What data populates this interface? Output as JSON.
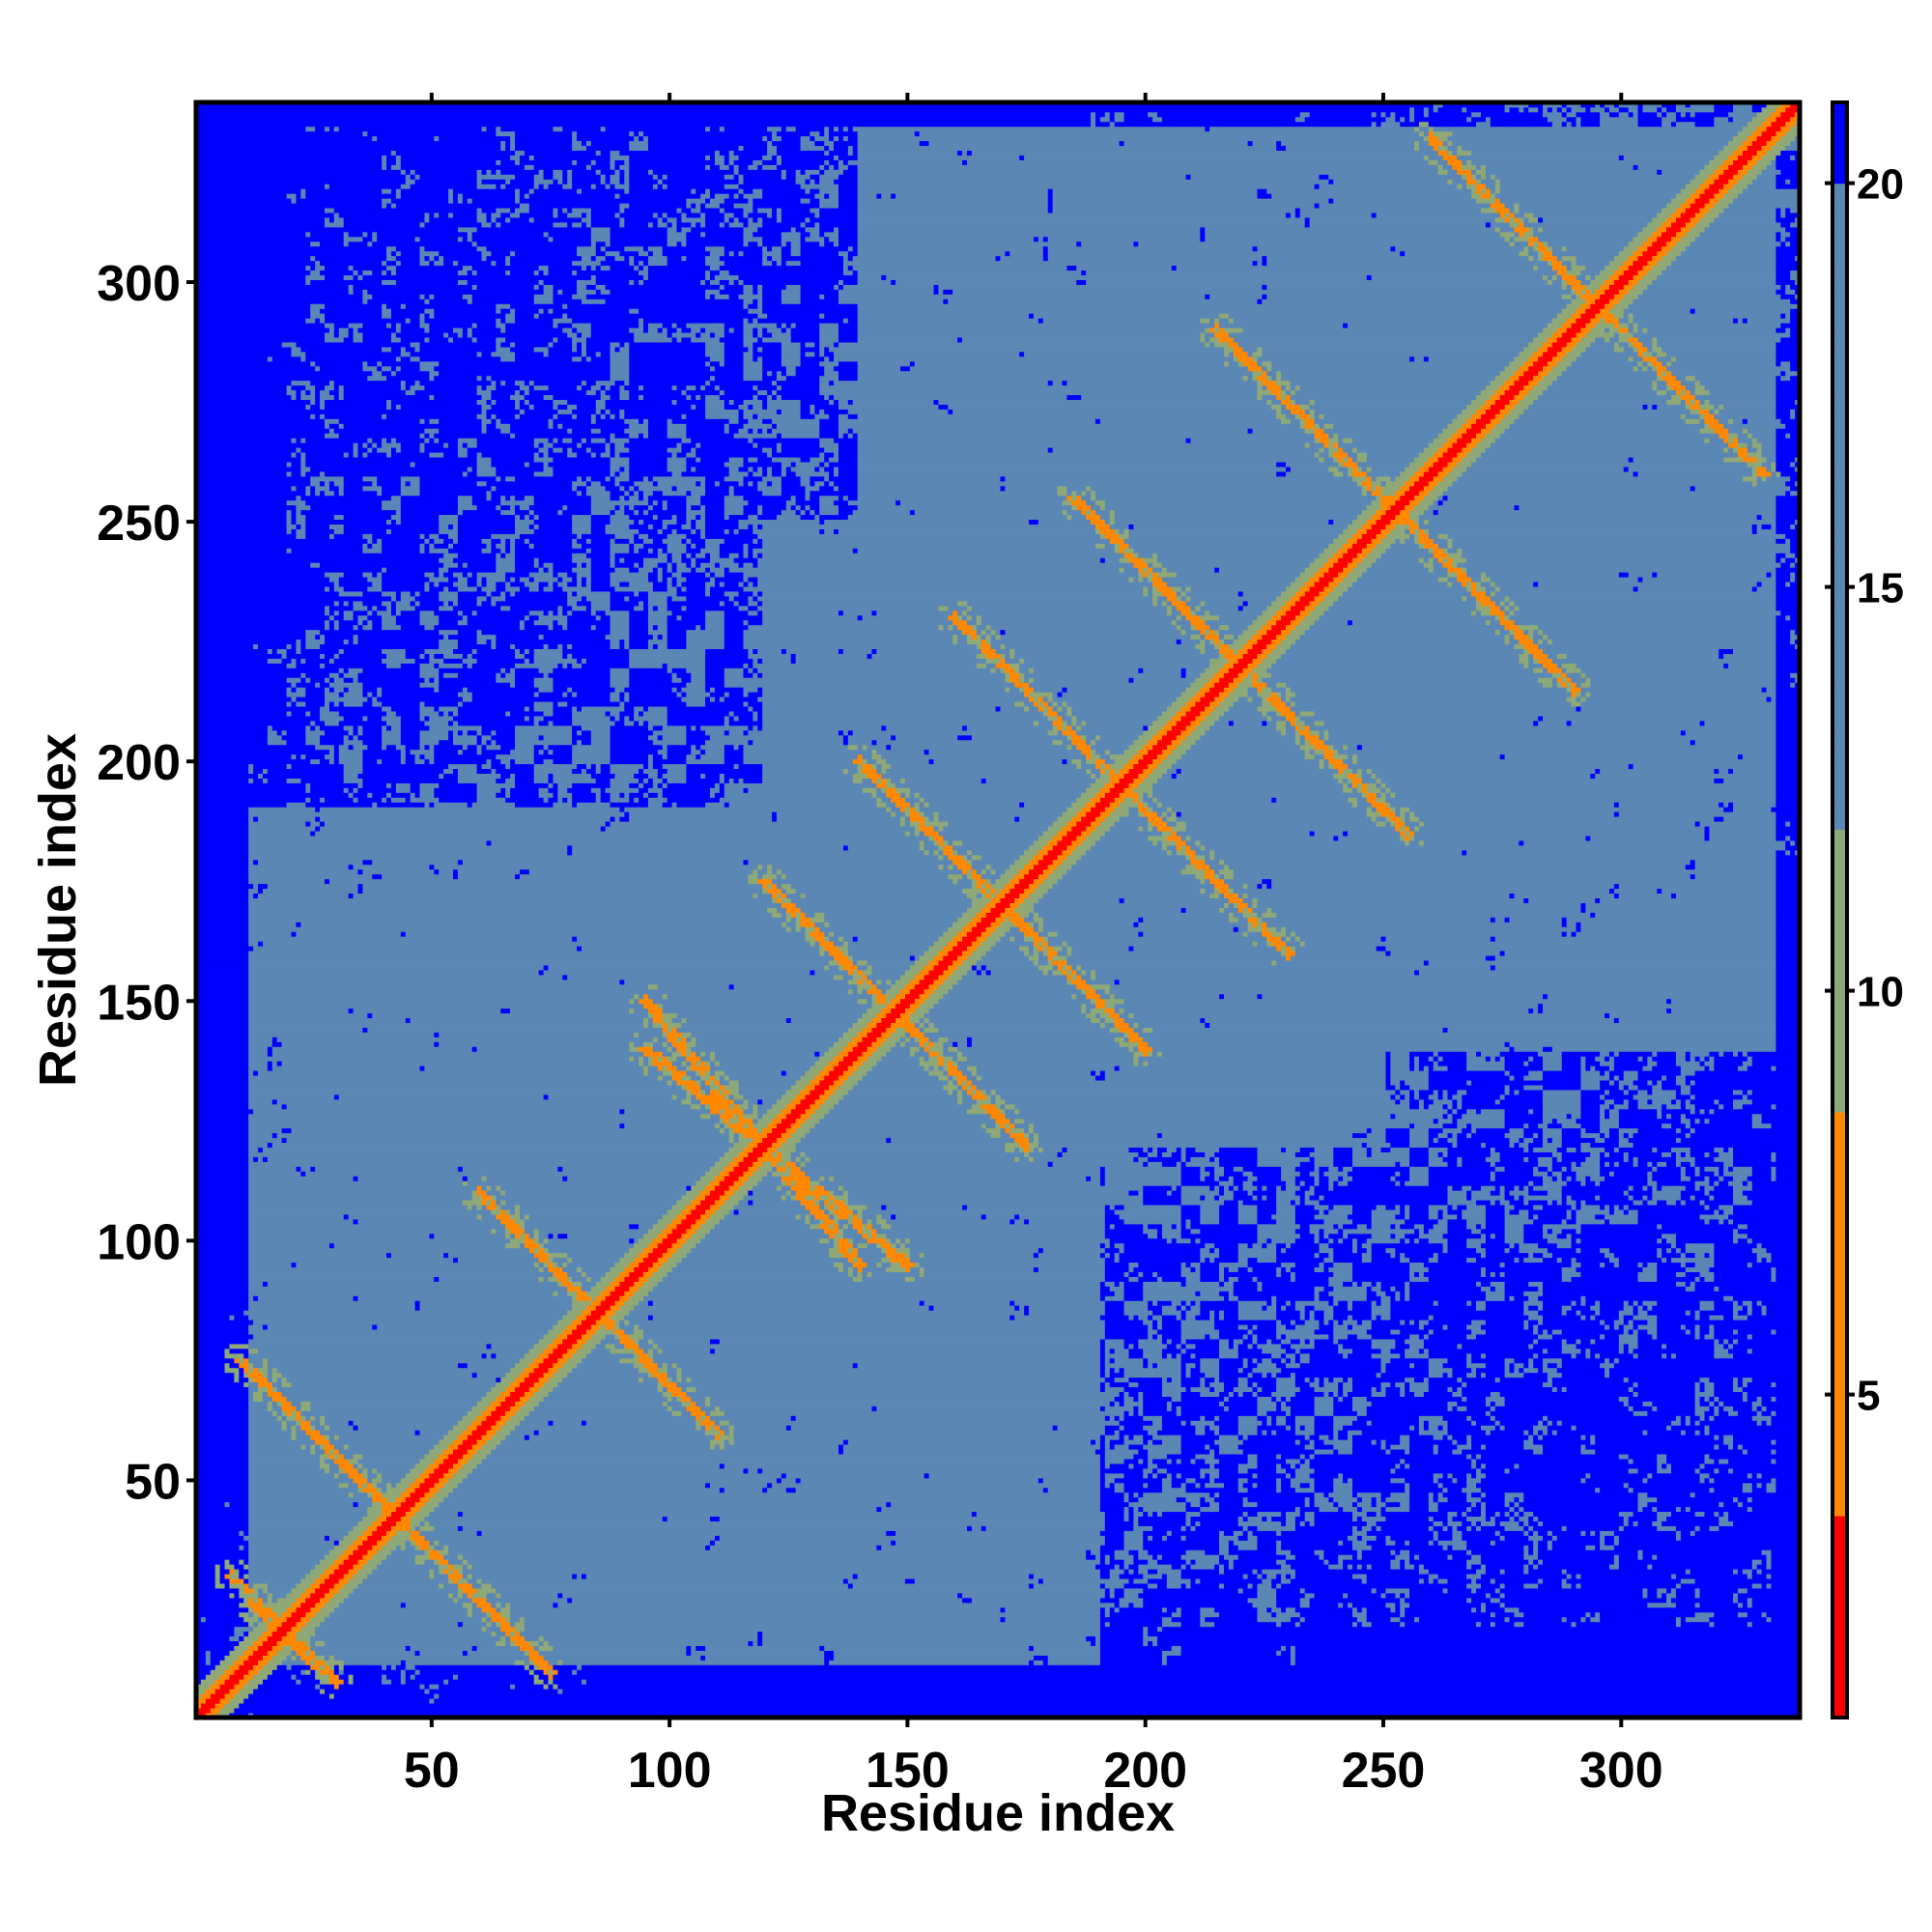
{
  "chart_data": {
    "type": "heatmap",
    "title": "",
    "xlabel": "Residue index",
    "ylabel": "Residue index",
    "xlim": [
      1,
      337
    ],
    "ylim": [
      1,
      337
    ],
    "x_ticks": [
      50,
      100,
      150,
      200,
      250,
      300
    ],
    "y_ticks": [
      50,
      100,
      150,
      200,
      250,
      300
    ],
    "x_tick_labels": [
      "50",
      "100",
      "150",
      "200",
      "250",
      "300"
    ],
    "y_tick_labels": [
      "50",
      "100",
      "150",
      "200",
      "250",
      "300"
    ],
    "colorbar": {
      "range": [
        1,
        21
      ],
      "ticks": [
        5,
        10,
        15,
        20
      ],
      "tick_labels": [
        "5",
        "10",
        "15",
        "20"
      ],
      "colors": [
        "#ff0000",
        "#ff8800",
        "#8fa878",
        "#5b87b5",
        "#0000ff"
      ]
    },
    "grid": false,
    "legend": "none",
    "description_of_values": "symmetric residue-residue distance map; main diagonal near 1-4 (red/orange), beta-strand bands below 8 (orange), background around 18-19 (steel blue), far contacts above 20 (blue)",
    "diagonal_value": 1,
    "background_value": 18.5,
    "far_value": 21,
    "band_value": 6,
    "bands": [
      {
        "from": [
          12,
          25
        ],
        "to": [
          30,
          8
        ]
      },
      {
        "from": [
          10,
          75
        ],
        "to": [
          55,
          30
        ]
      },
      {
        "from": [
          60,
          110
        ],
        "to": [
          110,
          60
        ]
      },
      {
        "from": [
          95,
          140
        ],
        "to": [
          150,
          95
        ]
      },
      {
        "from": [
          120,
          175
        ],
        "to": [
          175,
          120
        ]
      },
      {
        "from": [
          140,
          200
        ],
        "to": [
          200,
          140
        ]
      },
      {
        "from": [
          160,
          230
        ],
        "to": [
          230,
          160
        ]
      },
      {
        "from": [
          185,
          255
        ],
        "to": [
          255,
          185
        ]
      },
      {
        "from": [
          215,
          290
        ],
        "to": [
          290,
          215
        ]
      },
      {
        "from": [
          260,
          330
        ],
        "to": [
          330,
          260
        ]
      }
    ]
  }
}
